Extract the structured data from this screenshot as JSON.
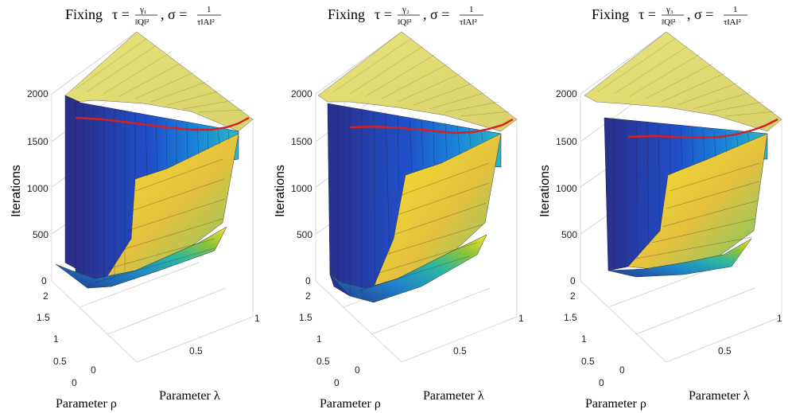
{
  "figure": {
    "panels": [
      {
        "title": {
          "prefix": "Fixing",
          "tau_frac_num": "γ₁",
          "tau_frac_den": "‖Q‖²",
          "sigma_frac_num": "1",
          "sigma_frac_den": "τ‖A‖²"
        },
        "zlabel": "Iterations",
        "xlabel": "Parameter λ",
        "ylabel": "Parameter ρ"
      },
      {
        "title": {
          "prefix": "Fixing",
          "tau_frac_num": "γ₂",
          "tau_frac_den": "‖Q‖²",
          "sigma_frac_num": "1",
          "sigma_frac_den": "τ‖A‖²"
        },
        "zlabel": "Iterations",
        "xlabel": "Parameter λ",
        "ylabel": "Parameter ρ"
      },
      {
        "title": {
          "prefix": "Fixing",
          "tau_frac_num": "γ₃",
          "tau_frac_den": "‖Q‖²",
          "sigma_frac_num": "1",
          "sigma_frac_den": "τ‖A‖²"
        },
        "zlabel": "Iterations",
        "xlabel": "Parameter λ",
        "ylabel": "Parameter ρ"
      }
    ]
  },
  "chart_data": [
    {
      "type": "surface",
      "title": "Fixing τ = γ₁/‖Q‖², σ = 1/(τ‖A‖²)",
      "xlabel": "Parameter λ",
      "ylabel": "Parameter ρ",
      "zlabel": "Iterations",
      "xlim": [
        0,
        1
      ],
      "ylim": [
        0,
        2
      ],
      "zlim": [
        0,
        2000
      ],
      "xticks": [
        "0",
        "0.5",
        "1"
      ],
      "yticks": [
        "0",
        "0.5",
        "1",
        "1.5",
        "2"
      ],
      "zticks": [
        "0",
        "500",
        "1000",
        "1500",
        "2000"
      ],
      "grid": true,
      "colormap": "parula",
      "surface_rho_ticks": [
        0,
        0.5,
        1,
        1.5,
        2
      ],
      "min_iterations_approx": 40,
      "plateau_iterations": 2000,
      "highlight_curve": {
        "color": "#d42020",
        "z_values": [
          1750,
          1720,
          1690,
          1660,
          1640,
          1640,
          1660,
          1700,
          1760
        ]
      }
    },
    {
      "type": "surface",
      "title": "Fixing τ = γ₂/‖Q‖², σ = 1/(τ‖A‖²)",
      "xlabel": "Parameter λ",
      "ylabel": "Parameter ρ",
      "zlabel": "Iterations",
      "xlim": [
        0,
        1
      ],
      "ylim": [
        0,
        2
      ],
      "zlim": [
        0,
        2000
      ],
      "xticks": [
        "0",
        "0.5",
        "1"
      ],
      "yticks": [
        "0",
        "0.5",
        "1",
        "1.5",
        "2"
      ],
      "zticks": [
        "0",
        "500",
        "1000",
        "1500",
        "2000"
      ],
      "grid": true,
      "colormap": "parula",
      "min_iterations_approx": 30,
      "plateau_iterations": 2000,
      "highlight_curve": {
        "color": "#d42020",
        "z_values": [
          1630,
          1620,
          1610,
          1600,
          1590,
          1590,
          1610,
          1650,
          1720
        ]
      }
    },
    {
      "type": "surface",
      "title": "Fixing τ = γ₃/‖Q‖², σ = 1/(τ‖A‖²)",
      "xlabel": "Parameter λ",
      "ylabel": "Parameter ρ",
      "zlabel": "Iterations",
      "xlim": [
        0,
        1
      ],
      "ylim": [
        0,
        2
      ],
      "zlim": [
        0,
        2000
      ],
      "xticks": [
        "0",
        "0.5",
        "1"
      ],
      "yticks": [
        "0",
        "0.5",
        "1",
        "1.5",
        "2"
      ],
      "zticks": [
        "0",
        "500",
        "1000",
        "1500",
        "2000"
      ],
      "grid": true,
      "colormap": "parula",
      "min_iterations_approx": 60,
      "plateau_iterations": 2000,
      "highlight_curve": {
        "color": "#d42020",
        "z_values": [
          1520,
          1525,
          1520,
          1515,
          1520,
          1530,
          1560,
          1620,
          1690
        ]
      }
    }
  ],
  "colors": {
    "deep": "#352a87",
    "blue": "#1f60d8",
    "teal": "#22b3a3",
    "green": "#8cc33a",
    "yellow": "#f5e32a",
    "plateau": "#e8e27a",
    "curve": "#d42020"
  }
}
